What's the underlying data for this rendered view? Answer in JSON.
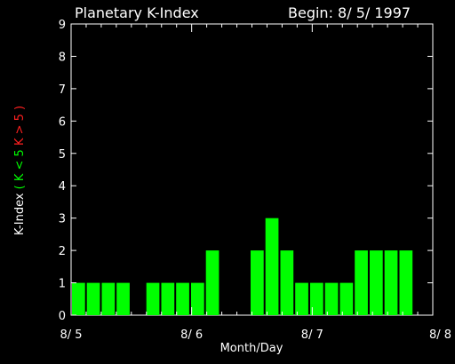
{
  "chart_data": {
    "type": "bar",
    "title": "Planetary K-Index",
    "subtitle": "Begin: 8/ 5/ 1997",
    "xlabel": "Month/Day",
    "ylabel_parts": [
      {
        "text": "K-Index",
        "color": "#ffffff"
      },
      {
        "text": "( K < 5",
        "color": "#00ff00"
      },
      {
        "text": "K > 5 )",
        "color": "#ff2020"
      }
    ],
    "ylim": [
      0,
      9
    ],
    "yticks": [
      "0",
      "1",
      "2",
      "3",
      "4",
      "5",
      "6",
      "7",
      "8",
      "9"
    ],
    "xticks": [
      "8/ 5",
      "8/ 6",
      "8/ 7",
      "8/ 8"
    ],
    "bar_color": "#00ff00",
    "days": 3,
    "bins_per_day": 8,
    "values": [
      1,
      1,
      1,
      1,
      0,
      1,
      1,
      1,
      1,
      2,
      0,
      0,
      2,
      3,
      2,
      1,
      1,
      1,
      1,
      2,
      2,
      2,
      2,
      0
    ]
  }
}
